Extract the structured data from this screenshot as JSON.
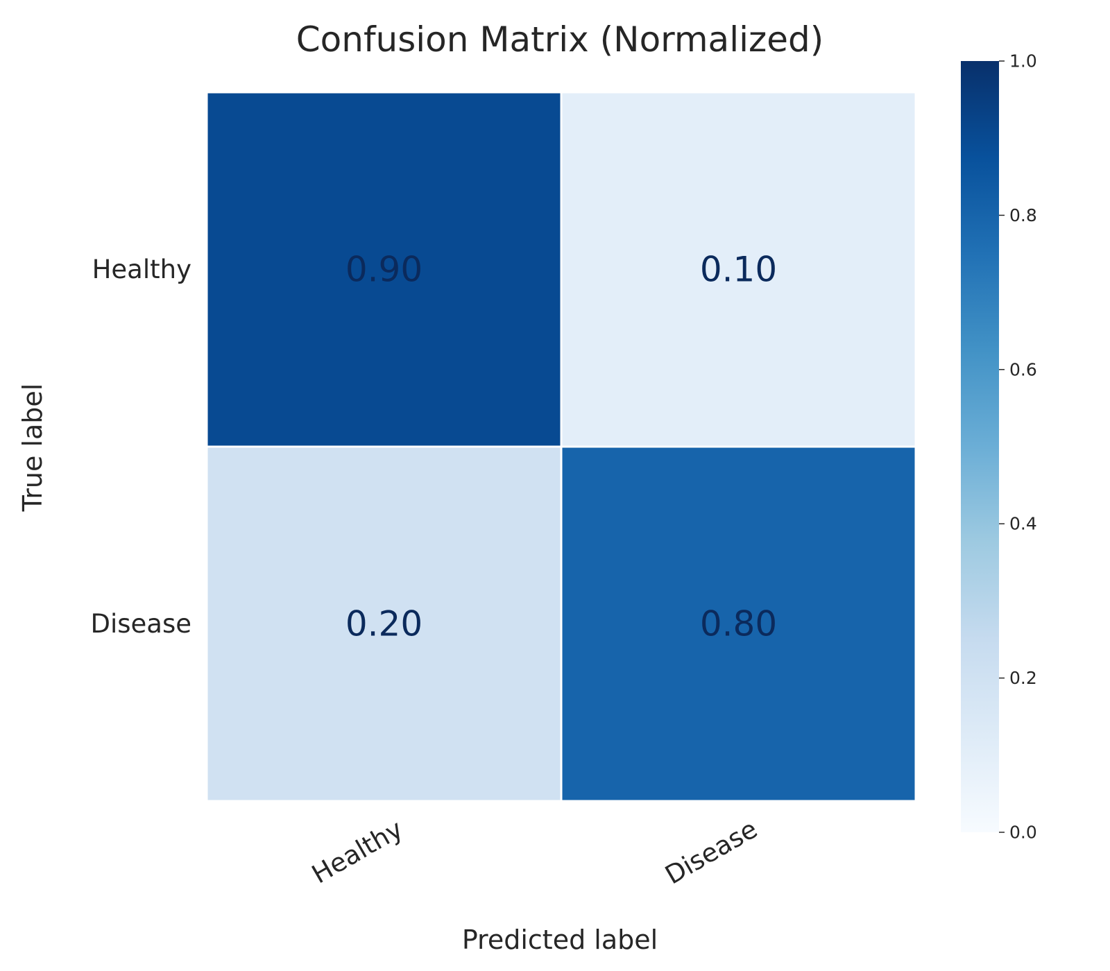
{
  "chart_data": {
    "type": "heatmap",
    "title": "Confusion Matrix (Normalized)",
    "xlabel": "Predicted label",
    "ylabel": "True label",
    "x_categories": [
      "Healthy",
      "Disease"
    ],
    "y_categories": [
      "Healthy",
      "Disease"
    ],
    "values": [
      [
        0.9,
        0.1
      ],
      [
        0.2,
        0.8
      ]
    ],
    "value_labels": [
      [
        "0.90",
        "0.10"
      ],
      [
        "0.20",
        "0.80"
      ]
    ],
    "colormap": "Blues",
    "vmin": 0.0,
    "vmax": 1.0,
    "colorbar_ticks": [
      "0.0",
      "0.2",
      "0.4",
      "0.6",
      "0.8",
      "1.0"
    ],
    "colorbar_placement": "right",
    "grid": false
  }
}
